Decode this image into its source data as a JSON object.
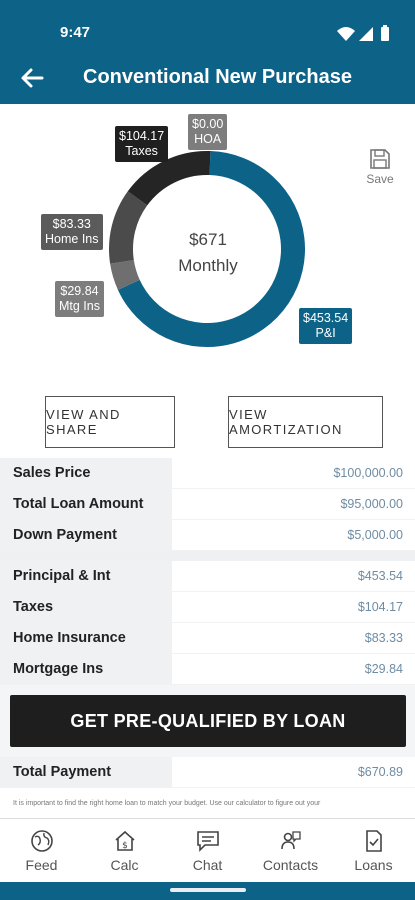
{
  "status": {
    "time": "9:47"
  },
  "header": {
    "title": "Conventional New Purchase"
  },
  "colors": {
    "brand": "#0d6387",
    "dark": "#1f1f1f",
    "value_text": "#6f8ca3"
  },
  "chart_data": {
    "type": "pie",
    "center": {
      "amount": "$671",
      "label": "Monthly"
    },
    "slices": [
      {
        "name": "P&I",
        "value": 453.54,
        "label": "$453.54",
        "color": "#0d6387"
      },
      {
        "name": "Mtg Ins",
        "value": 29.84,
        "label": "$29.84",
        "color": "#6f6f6f"
      },
      {
        "name": "Home Ins",
        "value": 83.33,
        "label": "$83.33",
        "color": "#4b4b4b"
      },
      {
        "name": "Taxes",
        "value": 104.17,
        "label": "$104.17",
        "color": "#252525"
      },
      {
        "name": "HOA",
        "value": 0.0,
        "label": "$0.00",
        "color": "#8a8a8a"
      }
    ]
  },
  "save_label": "Save",
  "buttons": {
    "share": "VIEW AND SHARE",
    "amortization": "VIEW AMORTIZATION"
  },
  "loan_rows": [
    {
      "label": "Sales Price",
      "value": "$100,000.00"
    },
    {
      "label": "Total Loan Amount",
      "value": "$95,000.00"
    },
    {
      "label": "Down Payment",
      "value": "$5,000.00"
    }
  ],
  "payment_rows": [
    {
      "label": "Principal & Int",
      "value": "$453.54"
    },
    {
      "label": "Taxes",
      "value": "$104.17"
    },
    {
      "label": "Home Insurance",
      "value": "$83.33"
    },
    {
      "label": "Mortgage Ins",
      "value": "$29.84"
    }
  ],
  "cta_label": "GET PRE-QUALIFIED BY LOAN",
  "total": {
    "label": "Total Payment",
    "value": "$670.89"
  },
  "disclaimer": "It is important to find the right home loan to match your budget. Use our calculator to figure out your",
  "nav": [
    {
      "label": "Feed",
      "icon": "globe-icon"
    },
    {
      "label": "Calc",
      "icon": "house-dollar-icon"
    },
    {
      "label": "Chat",
      "icon": "chat-icon"
    },
    {
      "label": "Contacts",
      "icon": "contacts-icon"
    },
    {
      "label": "Loans",
      "icon": "document-check-icon"
    }
  ]
}
